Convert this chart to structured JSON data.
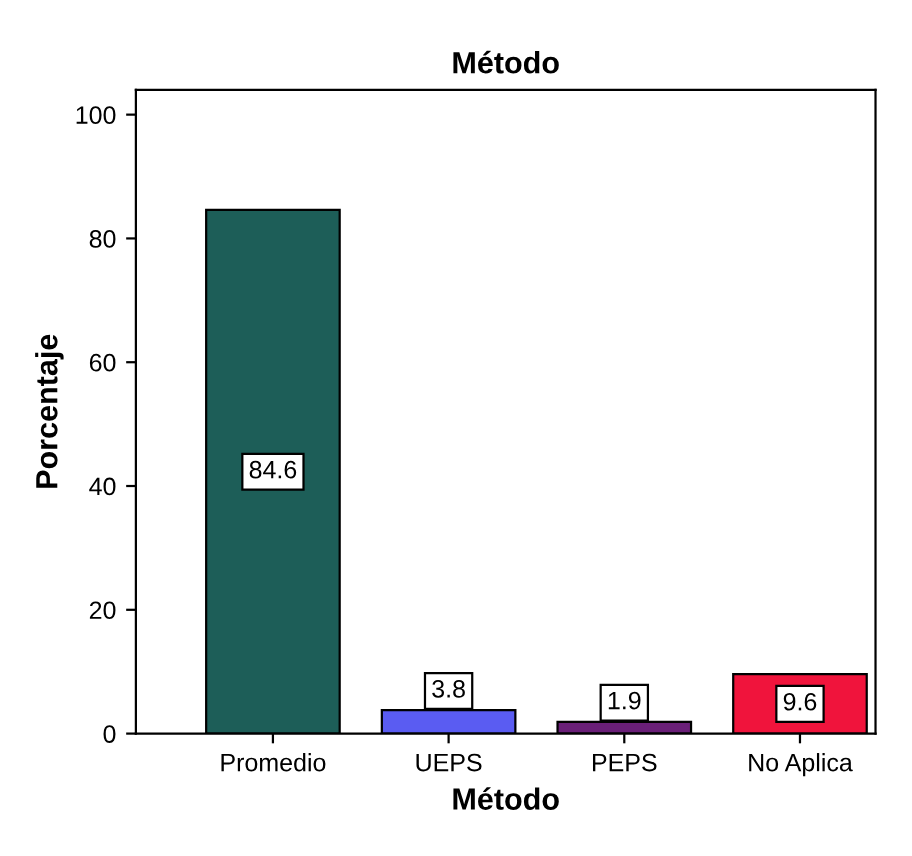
{
  "chart_data": {
    "type": "bar",
    "title": "Método",
    "xlabel": "Método",
    "ylabel": "Porcentaje",
    "categories": [
      "Promedio",
      "UEPS",
      "PEPS",
      "No Aplica"
    ],
    "values": [
      84.6,
      3.8,
      1.9,
      9.6
    ],
    "colors": [
      "#1d5e58",
      "#5a5cf2",
      "#6a1f78",
      "#f0143c"
    ],
    "ylim": [
      0,
      104
    ],
    "yticks": [
      0,
      20,
      40,
      60,
      80,
      100
    ],
    "grid": false,
    "data_labels": true
  }
}
